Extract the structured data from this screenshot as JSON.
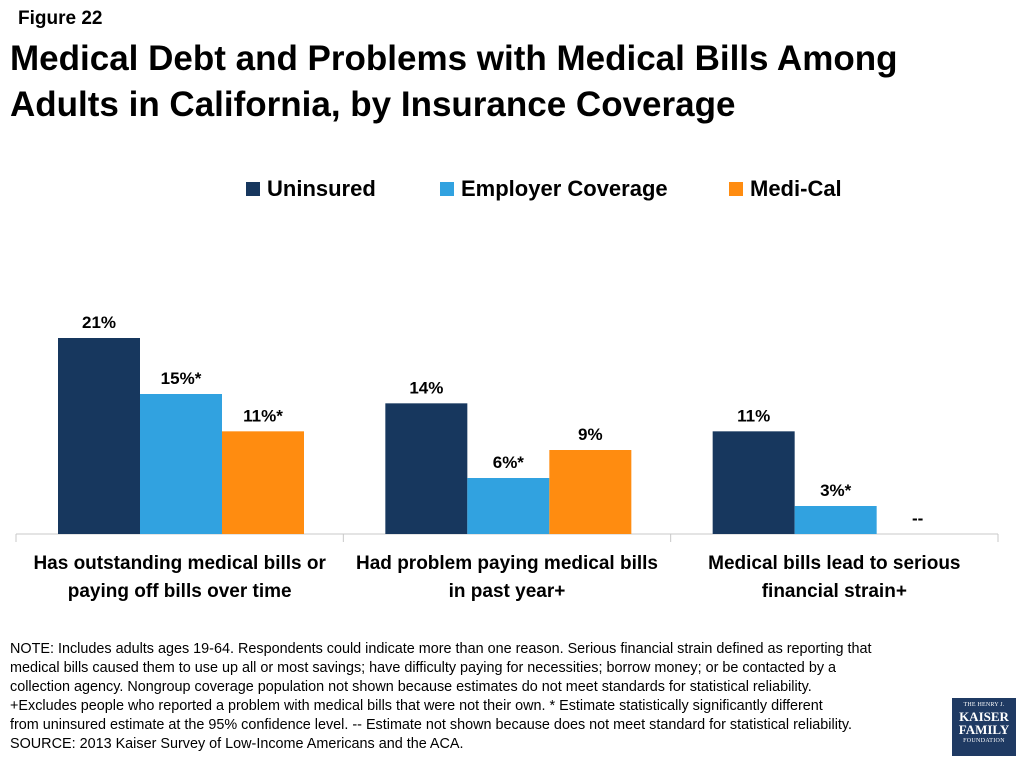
{
  "figure_label": "Figure 22",
  "title_lines": [
    "Medical Debt and Problems with Medical Bills Among",
    "Adults in California, by Insurance Coverage"
  ],
  "chart_data": {
    "type": "bar",
    "categories": [
      [
        "Has outstanding medical bills or",
        "paying off bills over time"
      ],
      [
        "Had problem paying medical bills",
        "in past year+"
      ],
      [
        "Medical bills lead to serious",
        "financial strain+"
      ]
    ],
    "series": [
      {
        "name": "Uninsured",
        "color": "#17375e",
        "values": [
          21,
          14,
          11
        ],
        "labels": [
          "21%",
          "14%",
          "11%"
        ]
      },
      {
        "name": "Employer Coverage",
        "color": "#31a2e0",
        "values": [
          15,
          6,
          3
        ],
        "labels": [
          "15%*",
          "6%*",
          "3%*"
        ]
      },
      {
        "name": "Medi-Cal",
        "color": "#ff8c10",
        "values": [
          11,
          9,
          null
        ],
        "labels": [
          "11%*",
          "9%",
          "--"
        ]
      }
    ],
    "ylim": [
      0,
      21
    ],
    "legend_position": "top-center",
    "grid": false
  },
  "footnote_lines": [
    "NOTE: Includes adults ages 19-64. Respondents could indicate more than one reason. Serious financial strain defined as reporting that",
    "medical bills caused them to use up all or most savings; have difficulty paying for necessities; borrow money; or be contacted by a",
    "collection agency. Nongroup coverage population not shown because estimates do not meet standards for statistical reliability.",
    "+Excludes people who reported a problem with medical bills that were not their own. * Estimate statistically significantly different",
    "from uninsured estimate  at the 95% confidence level. -- Estimate not shown because does not meet standard for statistical reliability.",
    "SOURCE: 2013 Kaiser Survey of Low-Income Americans and the ACA."
  ],
  "logo": {
    "line1": "THE HENRY J.",
    "line2": "KAISER",
    "line3": "FAMILY",
    "line4": "FOUNDATION"
  }
}
